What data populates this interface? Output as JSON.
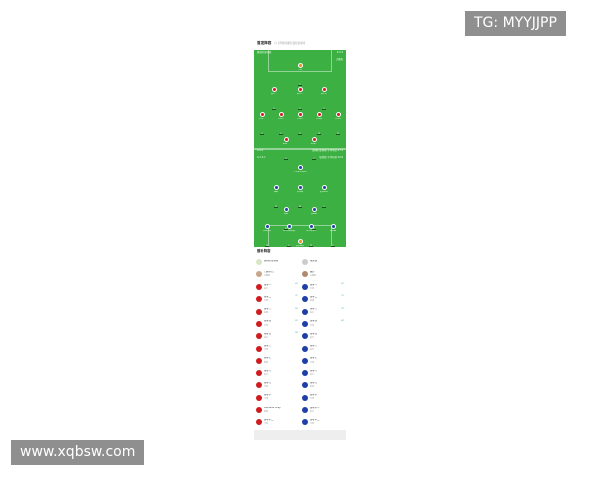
{
  "header": {
    "title": "首发阵容",
    "subtitle": "以下阵容可能有误仅供参考"
  },
  "pitch": {
    "home_team": "奥林匹亚科斯",
    "home_formation": "3-5-2",
    "away_team": "埃弗顿",
    "away_formation": "4-2-3-1",
    "home_coach_note": "主教练",
    "mid_left_1": "3-5-2",
    "mid_left_2": "4-2-3-1",
    "mid_right_1": "奥林匹亚科斯 平均年龄 27.4",
    "mid_right_2": "埃弗顿 平均年龄 26.8",
    "home": [
      {
        "name": "门将",
        "num": "1",
        "row": 0,
        "col": 0,
        "cols": 1
      },
      {
        "name": "后卫一",
        "num": "4",
        "row": 1,
        "col": 0,
        "cols": 3
      },
      {
        "name": "后卫二",
        "num": "5",
        "row": 1,
        "col": 1,
        "cols": 3
      },
      {
        "name": "后卫三",
        "num": "3",
        "row": 1,
        "col": 2,
        "cols": 3
      },
      {
        "name": "中场一",
        "num": "2",
        "row": 2,
        "col": 0,
        "cols": 5
      },
      {
        "name": "中场二",
        "num": "6",
        "row": 2,
        "col": 1,
        "cols": 5
      },
      {
        "name": "中场三",
        "num": "8",
        "row": 2,
        "col": 2,
        "cols": 5
      },
      {
        "name": "中场四",
        "num": "10",
        "row": 2,
        "col": 3,
        "cols": 5
      },
      {
        "name": "中场五",
        "num": "11",
        "row": 2,
        "col": 4,
        "cols": 5
      },
      {
        "name": "前锋一",
        "num": "9",
        "row": 3,
        "col": 0,
        "cols": 2
      },
      {
        "name": "前锋二",
        "num": "7",
        "row": 3,
        "col": 1,
        "cols": 2
      }
    ],
    "away": [
      {
        "name": "卡尔弗特-勒温",
        "num": "9",
        "row": 0,
        "col": 0,
        "cols": 1
      },
      {
        "name": "格雷",
        "num": "11",
        "row": 1,
        "col": 0,
        "cols": 3
      },
      {
        "name": "杜库雷",
        "num": "16",
        "row": 1,
        "col": 1,
        "cols": 3
      },
      {
        "name": "麦克尼尔",
        "num": "7",
        "row": 1,
        "col": 2,
        "cols": 3
      },
      {
        "name": "加纳",
        "num": "37",
        "row": 2,
        "col": 0,
        "cols": 2
      },
      {
        "name": "奥纳纳",
        "num": "8",
        "row": 2,
        "col": 1,
        "cols": 2
      },
      {
        "name": "米科伦科",
        "num": "19",
        "row": 3,
        "col": 0,
        "cols": 4
      },
      {
        "name": "塔尔科夫斯基",
        "num": "6",
        "row": 3,
        "col": 1,
        "cols": 4
      },
      {
        "name": "布兰斯维特",
        "num": "32",
        "row": 3,
        "col": 2,
        "cols": 4
      },
      {
        "name": "帕特森",
        "num": "2",
        "row": 3,
        "col": 3,
        "cols": 4
      },
      {
        "name": "皮克福德",
        "num": "1",
        "row": 4,
        "col": 0,
        "cols": 1,
        "gk": true
      }
    ]
  },
  "subs": {
    "title": "替补阵容",
    "home_team": "奥林匹亚科斯",
    "away_team": "埃弗顿",
    "home_coach": "门迪尔巴",
    "home_coach_role": "主教练",
    "away_coach": "戴什",
    "away_coach_role": "主教练",
    "home": [
      {
        "name": "替补一",
        "pos": "后卫",
        "time": "69'"
      },
      {
        "name": "替补二",
        "pos": "中场",
        "time": "75'"
      },
      {
        "name": "替补三",
        "pos": "前锋",
        "time": "80'"
      },
      {
        "name": "替补四",
        "pos": "中场",
        "time": "85'"
      },
      {
        "name": "替补五",
        "pos": "后卫",
        "time": "88'"
      },
      {
        "name": "替补六",
        "pos": "中场"
      },
      {
        "name": "替补七",
        "pos": "前锋"
      },
      {
        "name": "替补八",
        "pos": "后卫"
      },
      {
        "name": "替补九",
        "pos": "中场"
      },
      {
        "name": "替补十",
        "pos": "门将"
      },
      {
        "name": "Demarai Gray",
        "pos": "前锋"
      },
      {
        "name": "替补十二",
        "pos": "门将"
      }
    ],
    "away": [
      {
        "name": "替补一",
        "pos": "中场",
        "time": "62'"
      },
      {
        "name": "替补二",
        "pos": "前锋",
        "time": "70'"
      },
      {
        "name": "替补三",
        "pos": "后卫",
        "time": "78'"
      },
      {
        "name": "替补四",
        "pos": "中场",
        "time": "84'"
      },
      {
        "name": "替补五",
        "pos": "后卫"
      },
      {
        "name": "替补六",
        "pos": "后卫"
      },
      {
        "name": "替补七",
        "pos": "中场"
      },
      {
        "name": "替补八",
        "pos": "后卫"
      },
      {
        "name": "替补九",
        "pos": "前锋"
      },
      {
        "name": "替补十",
        "pos": "中场"
      },
      {
        "name": "替补十一",
        "pos": "后卫"
      },
      {
        "name": "替补十二",
        "pos": "门将"
      }
    ]
  },
  "watermarks": {
    "top": "TG: MYYJJPP",
    "bottom": "www.xqbsw.com"
  },
  "colors": {
    "pitch": "#3cb043",
    "home": "#d01c1f",
    "away": "#1e3fa8",
    "goalkeeper": "#f28a1c"
  }
}
